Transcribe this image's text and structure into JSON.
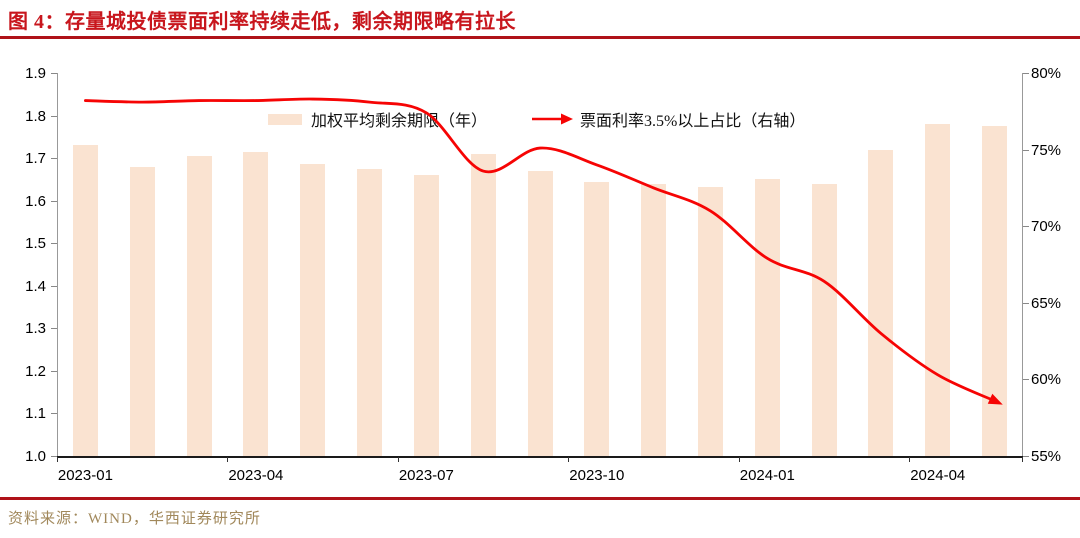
{
  "header": {
    "title": "图 4：存量城投债票面利率持续走低，剩余期限略有拉长"
  },
  "footer": {
    "source": "资料来源：WIND，华西证券研究所"
  },
  "colors": {
    "bar": "#fae3d1",
    "line": "#f60404",
    "title_red": "#c8161d",
    "rule_red": "#af1218",
    "footer_text": "#a1885b",
    "axis_gray": "#999999",
    "axis_bottom": "#1a1a1a",
    "tick_label": "#000000"
  },
  "chart_data": {
    "type": "bar",
    "title": "",
    "categories": [
      "2023-01",
      "2023-02",
      "2023-03",
      "2023-04",
      "2023-05",
      "2023-06",
      "2023-07",
      "2023-08",
      "2023-09",
      "2023-10",
      "2023-11",
      "2023-12",
      "2024-01",
      "2024-02",
      "2024-03",
      "2024-04",
      "2024-05"
    ],
    "series": [
      {
        "name": "加权平均剩余期限（年）",
        "type": "bar",
        "axis": "left",
        "values": [
          1.73,
          1.68,
          1.705,
          1.715,
          1.685,
          1.675,
          1.66,
          1.71,
          1.67,
          1.645,
          1.64,
          1.633,
          1.65,
          1.638,
          1.72,
          1.78,
          1.775
        ]
      },
      {
        "name": "票面利率3.5%以上占比（右轴）",
        "type": "line",
        "axis": "right",
        "values": [
          78.2,
          78.1,
          78.2,
          78.2,
          78.3,
          78.1,
          77.4,
          73.6,
          75.1,
          74.0,
          72.5,
          71.0,
          67.9,
          66.4,
          63.0,
          60.3,
          58.6
        ]
      }
    ],
    "left_axis": {
      "min": 1.0,
      "max": 1.9,
      "ticks": [
        "1.9",
        "1.8",
        "1.7",
        "1.6",
        "1.5",
        "1.4",
        "1.3",
        "1.2",
        "1.1",
        "1.0"
      ]
    },
    "right_axis": {
      "min": 55,
      "max": 80,
      "ticks": [
        "80%",
        "75%",
        "70%",
        "65%",
        "60%",
        "55%"
      ]
    },
    "x_ticks": [
      "2023-01",
      "2023-04",
      "2023-07",
      "2023-10",
      "2024-01",
      "2024-04"
    ],
    "legend_position": "top",
    "grid": "off",
    "line_end_marker": "arrow"
  }
}
